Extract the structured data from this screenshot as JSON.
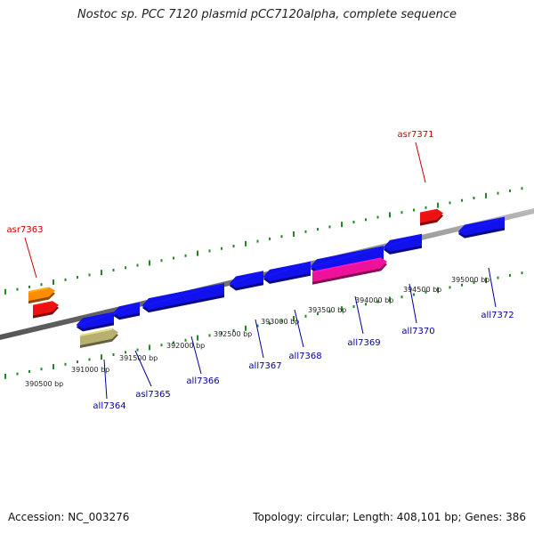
{
  "title": "Nostoc sp. PCC 7120 plasmid pCC7120alpha, complete sequence",
  "footer": {
    "accession": "Accession: NC_003276",
    "stats": "Topology: circular; Length: 408,101 bp; Genes: 386"
  },
  "colors": {
    "forward_gene": "#ee1111",
    "reverse_gene": "#1111ee",
    "backbone": "#888888",
    "ticks": "#228822",
    "forward_label": "#cc0000",
    "reverse_label": "#000099"
  },
  "bp_labels": [
    "390500 bp",
    "391000 bp",
    "391500 bp",
    "392000 bp",
    "392500 bp",
    "393000 bp",
    "393500 bp",
    "394000 bp",
    "394500 bp",
    "395000 bp"
  ],
  "forward_genes": [
    {
      "label": "asr7363",
      "color": "#ee1111",
      "labeled": true
    },
    {
      "label": "",
      "color": "#ff8c00",
      "labeled": false
    },
    {
      "label": "asr7371",
      "color": "#ee1111",
      "labeled": true
    }
  ],
  "reverse_genes": [
    {
      "label": "all7364",
      "color": "#1111ee",
      "labeled": true
    },
    {
      "label": "",
      "color": "#b8b070",
      "labeled": false
    },
    {
      "label": "asl7365",
      "color": "#1111ee",
      "labeled": true
    },
    {
      "label": "all7366",
      "color": "#1111ee",
      "labeled": true
    },
    {
      "label": "all7367",
      "color": "#1111ee",
      "labeled": true
    },
    {
      "label": "all7368",
      "color": "#1111ee",
      "labeled": true
    },
    {
      "label": "all7369",
      "color": "#1111ee",
      "labeled": true
    },
    {
      "label": "",
      "color": "#ee1199",
      "labeled": false
    },
    {
      "label": "all7370",
      "color": "#1111ee",
      "labeled": true
    },
    {
      "label": "all7372",
      "color": "#1111ee",
      "labeled": true
    }
  ]
}
